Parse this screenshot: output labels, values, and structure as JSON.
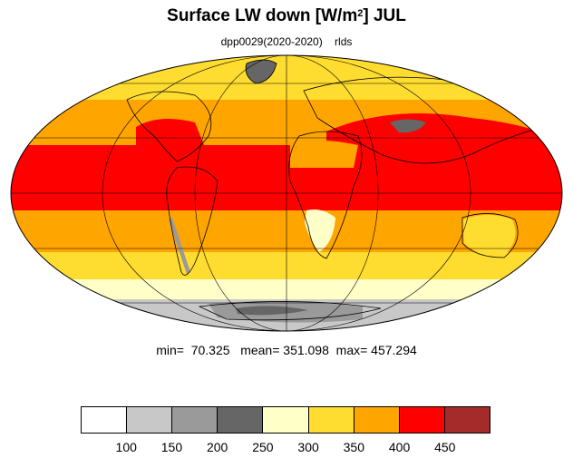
{
  "header": {
    "title_main": "Surface LW down [W/m",
    "title_sup": "2",
    "title_end": "]  JUL",
    "subtitle": "dpp0029(2020-2020)    rlds"
  },
  "stats": {
    "text": "min=  70.325   mean= 351.098  max= 457.294",
    "min": 70.325,
    "mean": 351.098,
    "max": 457.294
  },
  "map": {
    "projection": "mollweide",
    "graticule": true,
    "coastlines": true
  },
  "colorbar": {
    "levels": [
      "100",
      "150",
      "200",
      "250",
      "300",
      "350",
      "400",
      "450"
    ],
    "colors": [
      "#ffffff",
      "#c8c8c8",
      "#9a9a9a",
      "#666666",
      "#ffffc8",
      "#ffdc30",
      "#ffa500",
      "#ff0000",
      "#a52a2a"
    ]
  }
}
